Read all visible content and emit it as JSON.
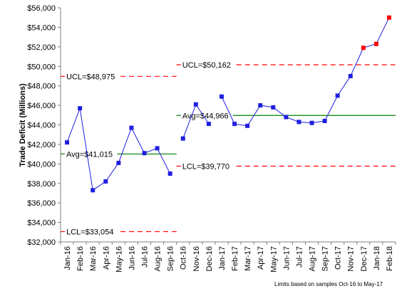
{
  "chart_data": {
    "type": "line",
    "title": "",
    "xlabel": "",
    "ylabel": "Trade Deficit (Millions)",
    "ylim": [
      32000,
      56000
    ],
    "yticks": [
      32000,
      34000,
      36000,
      38000,
      40000,
      42000,
      44000,
      46000,
      48000,
      50000,
      52000,
      54000,
      56000
    ],
    "ytick_labels": [
      "$32,000",
      "$34,000",
      "$36,000",
      "$38,000",
      "$40,000",
      "$42,000",
      "$44,000",
      "$46,000",
      "$48,000",
      "$50,000",
      "$52,000",
      "$54,000",
      "$56,000"
    ],
    "categories": [
      "Jan-16",
      "Feb-16",
      "Mar-16",
      "Apr-16",
      "May-16",
      "Jun-16",
      "Jul-16",
      "Aug-16",
      "Sep-16",
      "Oct-16",
      "Nov-16",
      "Dec-16",
      "Jan-17",
      "Feb-17",
      "Mar-17",
      "Apr-17",
      "May-17",
      "Jun-17",
      "Jul-17",
      "Aug-17",
      "Sep-17",
      "Oct-17",
      "Nov-17",
      "Dec-17",
      "Jan-18",
      "Feb-18"
    ],
    "values": [
      42200,
      45700,
      37300,
      38200,
      40100,
      43700,
      41100,
      41600,
      39000,
      42600,
      46100,
      44100,
      46900,
      44100,
      43900,
      46000,
      45800,
      44800,
      44300,
      44200,
      44400,
      47000,
      49000,
      51900,
      52300,
      55000
    ],
    "signal_points": [
      23,
      24,
      25
    ],
    "segments": [
      {
        "start": 0,
        "end": 8,
        "avg": 41015,
        "ucl": 48975,
        "lcl": 33054,
        "avg_label": "Avg=$41,015",
        "ucl_label": "UCL=$48,975",
        "lcl_label": "LCL=$33,054"
      },
      {
        "start": 9,
        "end": 25,
        "avg": 44966,
        "ucl": 50162,
        "lcl": 39770,
        "avg_label": "Avg=$44,966",
        "ucl_label": "UCL=$50,162",
        "lcl_label": "LCL=$39,770"
      }
    ],
    "line_breaks_after": [
      8,
      11
    ],
    "note": "Limits based on samples Oct-16 to May-17",
    "colors": {
      "series": "#1F1FE0",
      "marker": "#1F1FE0",
      "signal": "#FF0000",
      "avg": "#008000",
      "limit": "#FF0000",
      "axis": "#808080"
    },
    "grid": false,
    "legend": "none"
  }
}
